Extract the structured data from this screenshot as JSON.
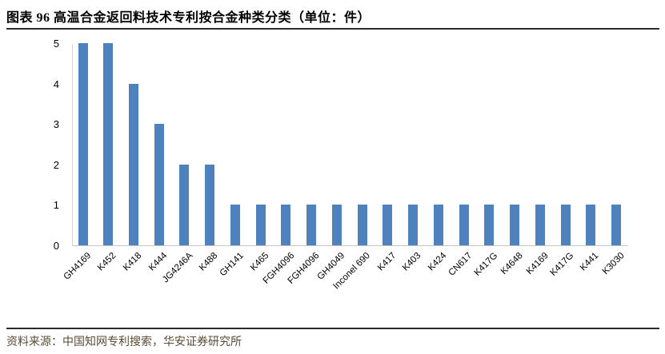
{
  "page": {
    "title": "图表 96 高温合金返回料技术专利按合金种类分类（单位：件）",
    "source": "资料来源：中国知网专利搜索，华安证券研究所"
  },
  "chart_data": {
    "type": "bar",
    "title": "高温合金返回料技术专利按合金种类分类",
    "unit": "件",
    "categories": [
      "GH4169",
      "K452",
      "K418",
      "K444",
      "JG4246A",
      "K488",
      "GH141",
      "K465",
      "FGH4096",
      "FGH4096",
      "GH4049",
      "Inconel 690",
      "K417",
      "K403",
      "K424",
      "CN617",
      "K417G",
      "K4648",
      "K4169",
      "K417G",
      "K441",
      "K3030"
    ],
    "values": [
      5,
      5,
      4,
      3,
      2,
      2,
      1,
      1,
      1,
      1,
      1,
      1,
      1,
      1,
      1,
      1,
      1,
      1,
      1,
      1,
      1,
      1
    ],
    "xlabel": "",
    "ylabel": "",
    "ylim": [
      0,
      5
    ],
    "yticks": [
      0,
      1,
      2,
      3,
      4,
      5
    ],
    "grid": false,
    "legend": "none",
    "bar_color": "#4F81BD",
    "axis_color": "#D9D9D9",
    "tick_label_rotation_deg": 45
  }
}
